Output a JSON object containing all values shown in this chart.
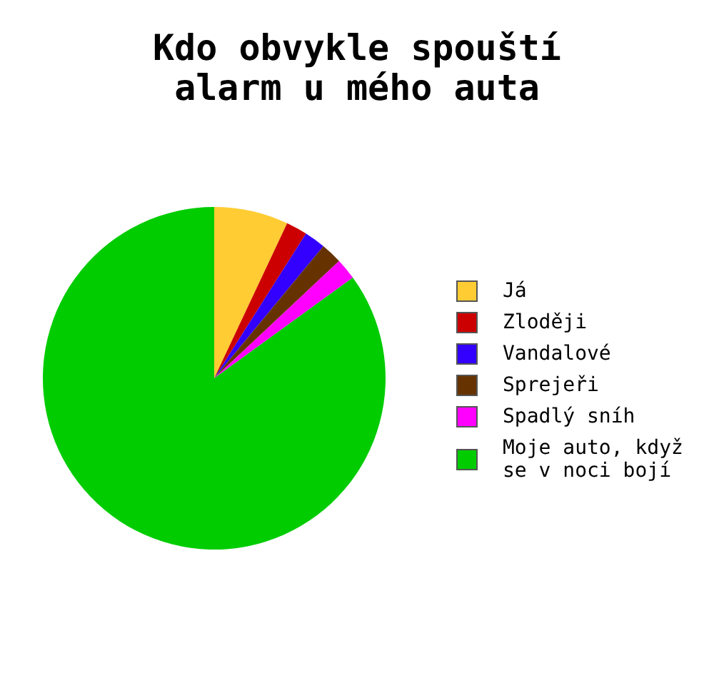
{
  "chart_data": {
    "type": "pie",
    "title": "Kdo obvykle spouští\nalarm u mého auta",
    "categories": [
      "Já",
      "Zloději",
      "Vandalové",
      "Sprejeři",
      "Spadlý sníh",
      "Moje auto, když\nse v noci bojí"
    ],
    "values": [
      7,
      2,
      2,
      2,
      2,
      85
    ],
    "colors": [
      "#ffcc33",
      "#cc0000",
      "#3300ff",
      "#663300",
      "#ff00ff",
      "#00cc00"
    ],
    "legend": "right"
  }
}
